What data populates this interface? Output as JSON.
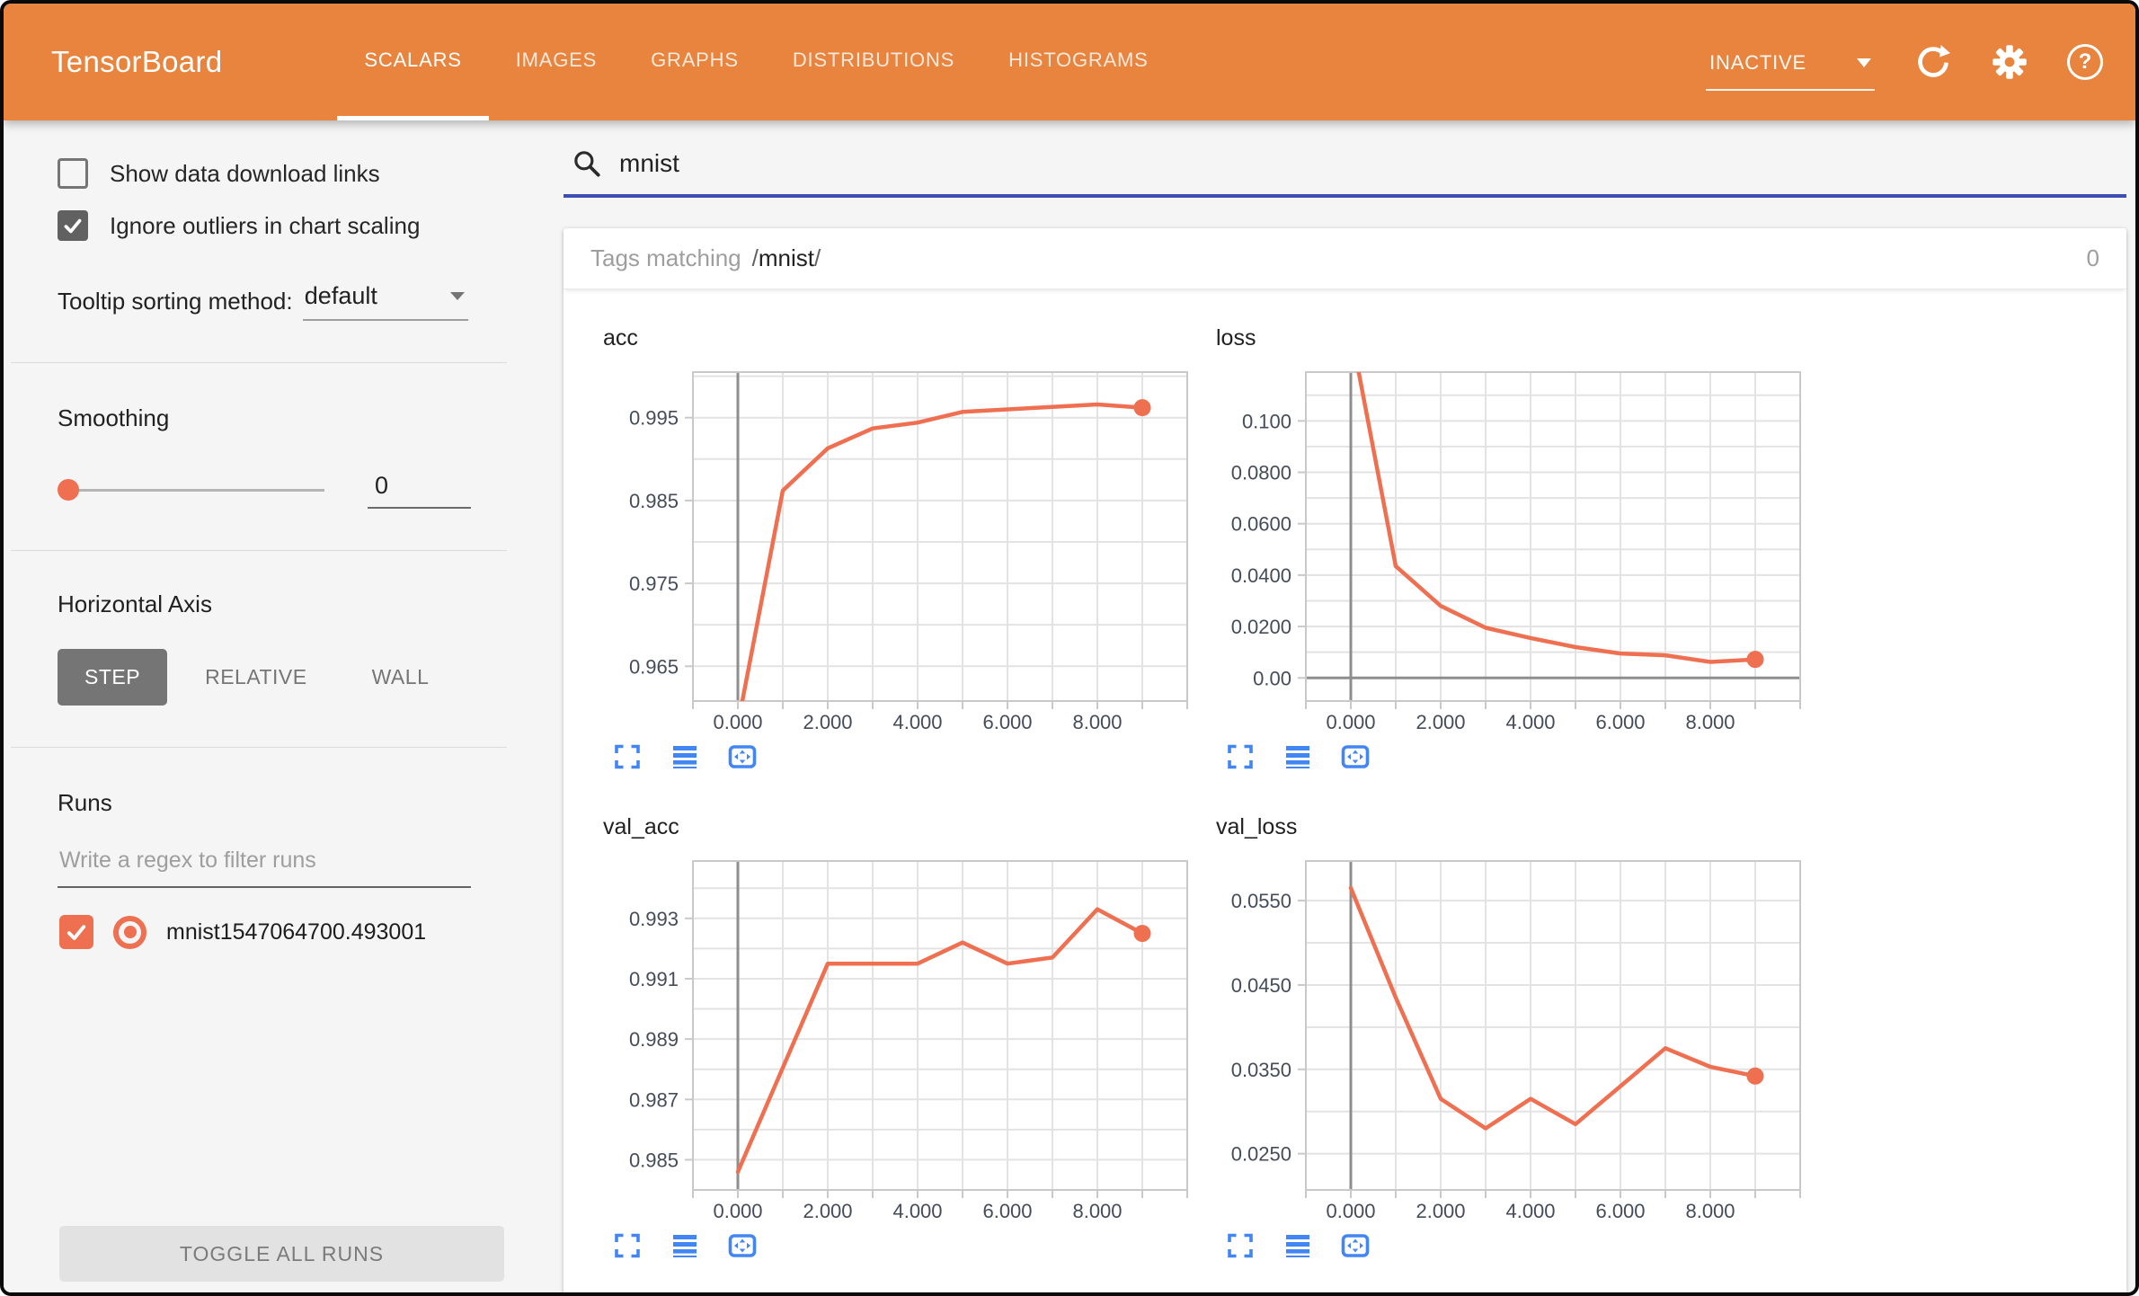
{
  "header": {
    "title": "TensorBoard",
    "tabs": [
      {
        "label": "SCALARS",
        "active": true
      },
      {
        "label": "IMAGES",
        "active": false
      },
      {
        "label": "GRAPHS",
        "active": false
      },
      {
        "label": "DISTRIBUTIONS",
        "active": false
      },
      {
        "label": "HISTOGRAMS",
        "active": false
      }
    ],
    "status": {
      "label": "INACTIVE"
    },
    "icons": [
      "refresh-icon",
      "settings-gear-icon",
      "help-icon"
    ]
  },
  "sidebar": {
    "checkboxes": [
      {
        "label": "Show data download links",
        "checked": false
      },
      {
        "label": "Ignore outliers in chart scaling",
        "checked": true
      }
    ],
    "tooltip_sorting": {
      "label": "Tooltip sorting method:",
      "value": "default"
    },
    "smoothing": {
      "label": "Smoothing",
      "value": "0"
    },
    "horizontal_axis": {
      "label": "Horizontal Axis",
      "options": [
        {
          "label": "STEP",
          "active": true
        },
        {
          "label": "RELATIVE",
          "active": false
        },
        {
          "label": "WALL",
          "active": false
        }
      ]
    },
    "runs": {
      "label": "Runs",
      "filter_placeholder": "Write a regex to filter runs",
      "items": [
        {
          "label": "mnist1547064700.493001",
          "checked": true
        }
      ],
      "toggle_button": "TOGGLE ALL RUNS"
    }
  },
  "main": {
    "search": {
      "value": "mnist"
    },
    "tags_header": {
      "prefix": "Tags matching",
      "open_slash": "/",
      "regex": "mnist",
      "close_slash": "/",
      "count": "0"
    },
    "chart_toolbar_icons": [
      "fullscreen-icon",
      "runs-list-icon",
      "fit-domain-icon"
    ]
  },
  "colors": {
    "header_bg": "#e8843d",
    "accent": "#ef6f51",
    "icon_blue": "#4285f4",
    "search_underline": "#3d4fb5"
  },
  "chart_data": [
    {
      "type": "line",
      "title": "acc",
      "run": "mnist1547064700.493001",
      "x": [
        0,
        1000,
        2000,
        3000,
        4000,
        5000,
        6000,
        7000,
        8000,
        9000
      ],
      "values": [
        0.958,
        0.9862,
        0.9913,
        0.9937,
        0.9944,
        0.9957,
        0.996,
        0.9963,
        0.9966,
        0.9962
      ],
      "xlim": [
        -1000,
        10000
      ],
      "ylim": [
        0.9608,
        1.0005
      ],
      "x_grid_step": 1000,
      "x_ticks": [
        {
          "v": 0,
          "label": "0.000"
        },
        {
          "v": 2000,
          "label": "2.000"
        },
        {
          "v": 4000,
          "label": "4.000"
        },
        {
          "v": 6000,
          "label": "6.000"
        },
        {
          "v": 8000,
          "label": "8.000"
        }
      ],
      "y_grid": [
        0.965,
        0.97,
        0.975,
        0.98,
        0.985,
        0.99,
        0.995,
        1.0
      ],
      "y_ticks": [
        {
          "v": 0.965,
          "label": "0.965"
        },
        {
          "v": 0.975,
          "label": "0.975"
        },
        {
          "v": 0.985,
          "label": "0.985"
        },
        {
          "v": 0.995,
          "label": "0.995"
        }
      ],
      "zero_x": true,
      "zero_y": false
    },
    {
      "type": "line",
      "title": "loss",
      "run": "mnist1547064700.493001",
      "x": [
        0,
        1000,
        2000,
        3000,
        4000,
        5000,
        6000,
        7000,
        8000,
        9000
      ],
      "values": [
        0.135,
        0.0435,
        0.028,
        0.0195,
        0.0155,
        0.012,
        0.0095,
        0.0088,
        0.0062,
        0.0072
      ],
      "xlim": [
        -1000,
        10000
      ],
      "ylim": [
        -0.009,
        0.119
      ],
      "x_grid_step": 1000,
      "x_ticks": [
        {
          "v": 0,
          "label": "0.000"
        },
        {
          "v": 2000,
          "label": "2.000"
        },
        {
          "v": 4000,
          "label": "4.000"
        },
        {
          "v": 6000,
          "label": "6.000"
        },
        {
          "v": 8000,
          "label": "8.000"
        }
      ],
      "y_grid": [
        0,
        0.01,
        0.02,
        0.03,
        0.04,
        0.05,
        0.06,
        0.07,
        0.08,
        0.09,
        0.1,
        0.11
      ],
      "y_ticks": [
        {
          "v": 0,
          "label": "0.00"
        },
        {
          "v": 0.02,
          "label": "0.0200"
        },
        {
          "v": 0.04,
          "label": "0.0400"
        },
        {
          "v": 0.06,
          "label": "0.0600"
        },
        {
          "v": 0.08,
          "label": "0.0800"
        },
        {
          "v": 0.1,
          "label": "0.100"
        }
      ],
      "zero_x": true,
      "zero_y": true
    },
    {
      "type": "line",
      "title": "val_acc",
      "run": "mnist1547064700.493001",
      "x": [
        0,
        1000,
        2000,
        3000,
        4000,
        5000,
        6000,
        7000,
        8000,
        9000
      ],
      "values": [
        0.9846,
        0.98805,
        0.9915,
        0.9915,
        0.9915,
        0.9922,
        0.9915,
        0.9917,
        0.9933,
        0.9925
      ],
      "xlim": [
        -1000,
        10000
      ],
      "ylim": [
        0.984,
        0.9949
      ],
      "x_grid_step": 1000,
      "x_ticks": [
        {
          "v": 0,
          "label": "0.000"
        },
        {
          "v": 2000,
          "label": "2.000"
        },
        {
          "v": 4000,
          "label": "4.000"
        },
        {
          "v": 6000,
          "label": "6.000"
        },
        {
          "v": 8000,
          "label": "8.000"
        }
      ],
      "y_grid": [
        0.984,
        0.985,
        0.986,
        0.987,
        0.988,
        0.989,
        0.99,
        0.991,
        0.992,
        0.993,
        0.994
      ],
      "y_ticks": [
        {
          "v": 0.985,
          "label": "0.985"
        },
        {
          "v": 0.987,
          "label": "0.987"
        },
        {
          "v": 0.989,
          "label": "0.989"
        },
        {
          "v": 0.991,
          "label": "0.991"
        },
        {
          "v": 0.993,
          "label": "0.993"
        }
      ],
      "zero_x": true,
      "zero_y": false
    },
    {
      "type": "line",
      "title": "val_loss",
      "run": "mnist1547064700.493001",
      "x": [
        0,
        1000,
        2000,
        3000,
        4000,
        5000,
        6000,
        7000,
        8000,
        9000
      ],
      "values": [
        0.0565,
        0.0435,
        0.0315,
        0.028,
        0.0315,
        0.0285,
        0.033,
        0.0375,
        0.0353,
        0.0342
      ],
      "xlim": [
        -1000,
        10000
      ],
      "ylim": [
        0.0207,
        0.0597
      ],
      "x_grid_step": 1000,
      "x_ticks": [
        {
          "v": 0,
          "label": "0.000"
        },
        {
          "v": 2000,
          "label": "2.000"
        },
        {
          "v": 4000,
          "label": "4.000"
        },
        {
          "v": 6000,
          "label": "6.000"
        },
        {
          "v": 8000,
          "label": "8.000"
        }
      ],
      "y_grid": [
        0.025,
        0.03,
        0.035,
        0.04,
        0.045,
        0.05,
        0.055
      ],
      "y_ticks": [
        {
          "v": 0.025,
          "label": "0.0250"
        },
        {
          "v": 0.035,
          "label": "0.0350"
        },
        {
          "v": 0.045,
          "label": "0.0450"
        },
        {
          "v": 0.055,
          "label": "0.0550"
        }
      ],
      "zero_x": true,
      "zero_y": false
    }
  ]
}
